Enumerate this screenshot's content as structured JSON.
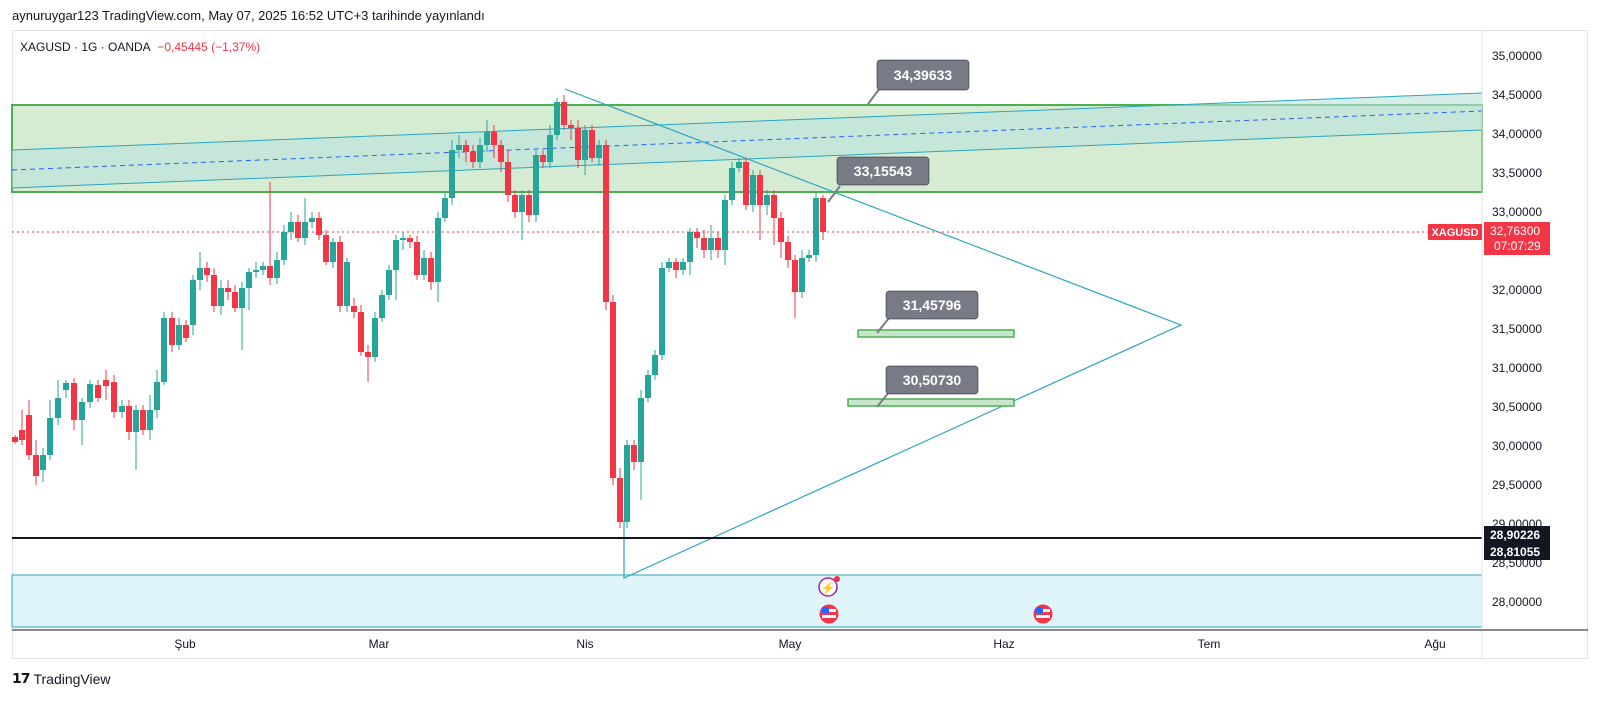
{
  "header": {
    "published": "aynuruygar123 TradingView.com, May 07, 2025 16:52 UTC+3 tarihinde yayınlandı"
  },
  "legend": {
    "symbol": "XAGUSD · 1G · OANDA",
    "change": "−0,45445 (−1,37%)"
  },
  "price_axis": {
    "ticks": [
      "35,00000",
      "34,50000",
      "34,00000",
      "33,50000",
      "33,00000",
      "32,00000",
      "31,50000",
      "31,00000",
      "30,50000",
      "30,00000",
      "29,50000",
      "29,00000",
      "28,50000",
      "28,00000"
    ],
    "current_label": "XAGUSD",
    "current_price": "32,76300",
    "countdown": "07:07:29",
    "level_1": "28,90226",
    "level_2": "28,81055"
  },
  "time_axis": {
    "ticks": [
      "Şub",
      "Mar",
      "Nis",
      "May",
      "Haz",
      "Tem",
      "Ağu"
    ]
  },
  "callouts": [
    "34,39633",
    "33,15543",
    "31,45796",
    "30,50730"
  ],
  "colors": {
    "up": "#26a69a",
    "down": "#f23645",
    "zone": "#d6ecd2",
    "trend": "#2aa5c0",
    "callout": "#787b86"
  },
  "footer": {
    "brand": "TradingView"
  }
}
